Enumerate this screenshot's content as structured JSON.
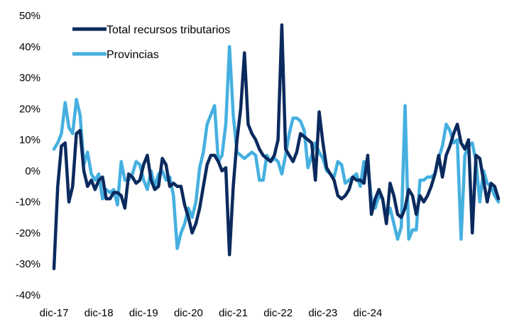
{
  "chart_data": {
    "type": "line",
    "title": "",
    "xlabel": "",
    "ylabel": "",
    "ylim": [
      -40,
      50
    ],
    "y_ticks": [
      "50%",
      "40%",
      "30%",
      "20%",
      "10%",
      "0%",
      "-10%",
      "-20%",
      "-30%",
      "-40%"
    ],
    "y_tick_values": [
      50,
      40,
      30,
      20,
      10,
      0,
      -10,
      -20,
      -30,
      -40
    ],
    "x_tick_labels": [
      "dic-17",
      "dic-18",
      "dic-19",
      "dic-20",
      "dic-21",
      "dic-22",
      "dic-23",
      "dic-24"
    ],
    "x_tick_indices": [
      0,
      12,
      24,
      36,
      48,
      60,
      72,
      84
    ],
    "grid": false,
    "legend_position": "top-left",
    "series": [
      {
        "name": "Total recursos tributarios",
        "color": "#0b2a5e",
        "values": [
          -31.5,
          -5,
          8,
          9,
          -10,
          -5,
          12,
          13,
          0,
          -5,
          -3,
          -6,
          -3,
          -2,
          -9,
          -9,
          -7,
          -7,
          -8,
          -12,
          -1,
          -2,
          -4,
          -3,
          2,
          5,
          -3,
          -6,
          -5,
          4,
          2,
          -5,
          -4,
          -5,
          -5,
          -11,
          -15,
          -20,
          -17,
          -12,
          -5,
          2,
          5,
          5,
          3,
          0,
          1,
          -27,
          -5,
          10,
          20,
          38,
          15,
          12,
          10,
          7,
          5,
          4,
          3,
          5,
          10,
          47,
          7,
          5,
          3,
          6,
          12,
          11,
          10,
          9,
          -3,
          19,
          9,
          1,
          -1,
          -3,
          -8,
          -9,
          -8,
          -6,
          -2,
          -3,
          -3,
          -4,
          5,
          -14,
          -9,
          -6,
          -9,
          -17,
          -4,
          -8,
          -14,
          -15,
          -12,
          -6,
          -8,
          -14,
          -8,
          -10,
          -8,
          -5,
          -1,
          5,
          -2,
          5,
          8,
          12,
          15,
          9,
          7,
          10,
          -20,
          5,
          4,
          -3,
          -10,
          -4,
          -5,
          -9
        ]
      },
      {
        "name": "Provincias",
        "color": "#45b0e0",
        "values": [
          7,
          9,
          12,
          22,
          14,
          12,
          23,
          18,
          2,
          6,
          -1,
          -3,
          -1,
          -9,
          -6,
          -7,
          -6,
          -11,
          3,
          -3,
          -3,
          -1,
          3,
          2,
          -3,
          -6,
          0,
          -5,
          -1,
          0,
          -3,
          -2,
          -8,
          -25,
          -20,
          -17,
          -12,
          -15,
          -10,
          1,
          6,
          15,
          18,
          21,
          3,
          5,
          15,
          40,
          18,
          6,
          5,
          4,
          5,
          6,
          5,
          -3,
          -3,
          5,
          3,
          4,
          3,
          -1,
          5,
          12,
          17,
          17,
          16,
          13,
          1,
          5,
          9,
          6,
          4,
          0,
          -1,
          -2,
          3,
          2,
          -4,
          -3,
          -2,
          -1,
          -5,
          3,
          2,
          -9,
          -12,
          -8,
          -9,
          -15,
          -12,
          -17,
          -22,
          -18,
          21,
          -22,
          -19,
          -19,
          -3,
          -3,
          -2,
          -2,
          -1,
          4,
          8,
          15,
          13,
          9,
          10,
          -22,
          5,
          8,
          9,
          3,
          -10,
          0,
          -4,
          -5,
          -8,
          -10
        ]
      }
    ]
  }
}
